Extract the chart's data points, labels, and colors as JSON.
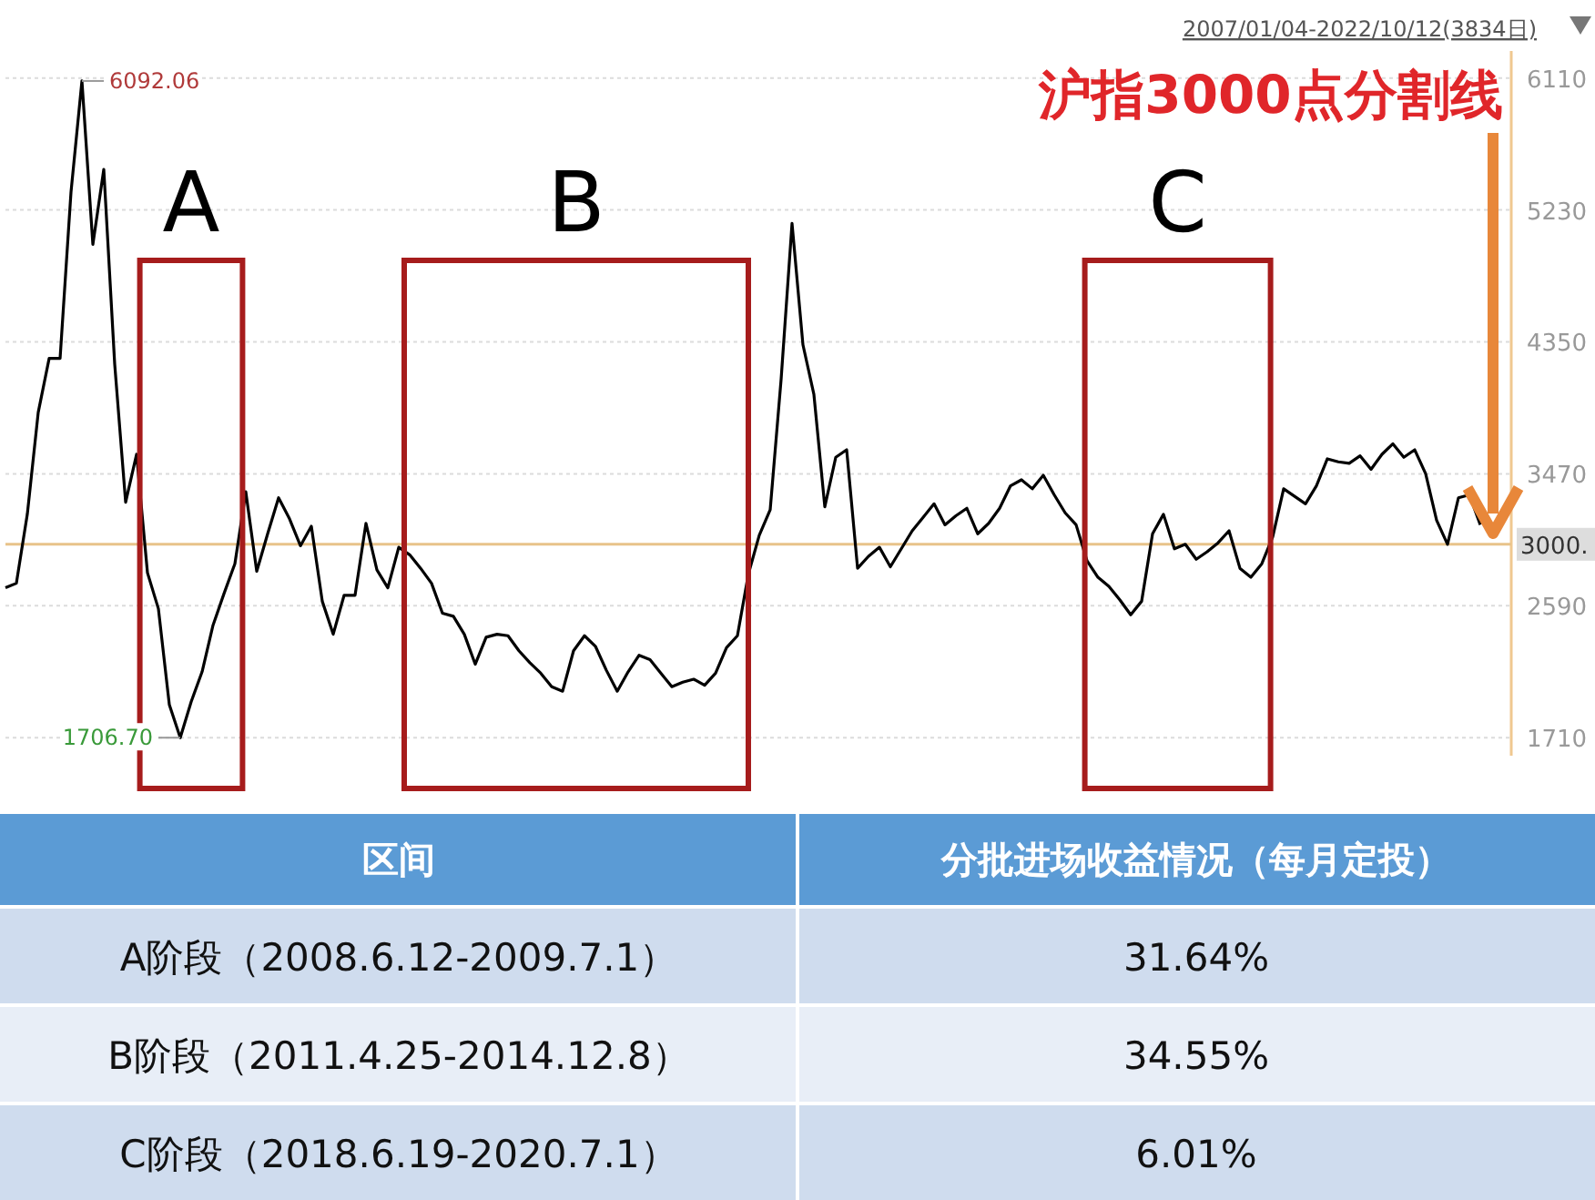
{
  "chart_data": [
    {
      "type": "line",
      "title": "沪指3000点分割线",
      "subtitle": "2007/01/04-2022/10/12(3834日)",
      "categories": [
        null,
        null,
        null,
        null,
        null,
        null,
        null,
        null,
        null,
        null,
        null,
        null,
        null,
        null,
        null,
        null,
        null,
        null,
        null,
        null,
        null,
        null,
        null,
        null,
        null,
        null,
        null,
        null,
        null,
        null,
        null,
        null,
        null,
        null,
        null,
        null,
        null,
        null,
        null,
        null,
        null,
        null,
        null,
        null,
        null,
        null,
        null,
        null,
        null,
        null,
        null,
        null,
        null,
        null,
        null,
        null,
        null,
        null,
        null,
        null,
        null,
        null,
        null,
        null,
        null,
        null,
        null,
        null,
        null,
        null,
        null,
        null,
        null,
        null,
        null,
        null,
        null,
        null,
        null,
        null,
        null,
        null,
        null,
        null,
        null,
        null,
        null,
        null,
        null,
        null,
        null,
        null,
        null,
        null,
        null,
        null,
        null,
        null,
        null,
        null,
        null,
        null,
        null,
        null,
        null,
        null,
        null,
        null,
        null,
        null,
        null,
        null,
        null,
        null,
        null,
        null,
        null,
        null,
        null,
        null,
        null,
        null,
        null,
        null,
        null,
        null,
        null,
        null,
        null,
        null,
        null,
        null,
        null,
        null,
        null,
        null
      ],
      "series": [
        {
          "color": "#000000",
          "values": [
            2710,
            2740,
            3200,
            3880,
            4240,
            4240,
            5350,
            6090,
            5000,
            5500,
            4200,
            3280,
            3600,
            2810,
            2570,
            1930,
            1710,
            1950,
            2150,
            2460,
            2670,
            2870,
            3350,
            2820,
            3070,
            3310,
            3170,
            2990,
            3120,
            2620,
            2400,
            2660,
            2660,
            3140,
            2830,
            2710,
            2980,
            2930,
            2840,
            2740,
            2540,
            2520,
            2400,
            2200,
            2380,
            2400,
            2390,
            2290,
            2210,
            2140,
            2050,
            2020,
            2290,
            2390,
            2320,
            2160,
            2020,
            2150,
            2260,
            2230,
            2140,
            2050,
            2080,
            2100,
            2060,
            2140,
            2310,
            2390,
            2800,
            3060,
            3230,
            4100,
            5140,
            4330,
            4000,
            3250,
            3580,
            3630,
            2840,
            2920,
            2980,
            2850,
            2970,
            3090,
            3180,
            3270,
            3130,
            3190,
            3240,
            3070,
            3140,
            3240,
            3390,
            3430,
            3370,
            3460,
            3330,
            3210,
            3130,
            2890,
            2780,
            2720,
            2630,
            2530,
            2620,
            3070,
            3200,
            2970,
            3000,
            2900,
            2950,
            3010,
            3090,
            2840,
            2780,
            2870,
            3050,
            3370,
            3320,
            3270,
            3390,
            3570,
            3550,
            3540,
            3590,
            3500,
            3600,
            3670,
            3580,
            3630,
            3470,
            3160,
            3000,
            3310,
            3330,
            3130
          ]
        }
      ],
      "ylim": [
        1590,
        6290
      ],
      "yticks": [
        1710,
        2590,
        3470,
        4350,
        5230,
        6110
      ],
      "grid": "y",
      "tick_labels": "y",
      "ref_lines": [
        {
          "axis": "y",
          "value": 3000,
          "label": "3000.",
          "color": "#e8c38a"
        }
      ],
      "annotations": [
        "6092.06",
        "1706.70",
        "A",
        "B",
        "C"
      ]
    },
    {
      "type": "other",
      "annotations": [
        "区间",
        "分批进场收益情况（每月定投）"
      ],
      "categories": [
        "A阶段（2008.6.12-2009.7.1）",
        "B阶段（2011.4.25-2014.12.8）",
        "C阶段（2018.6.19-2020.7.1）"
      ],
      "value_labels": [
        "31.64%",
        "34.55%",
        "6.01%"
      ]
    }
  ]
}
